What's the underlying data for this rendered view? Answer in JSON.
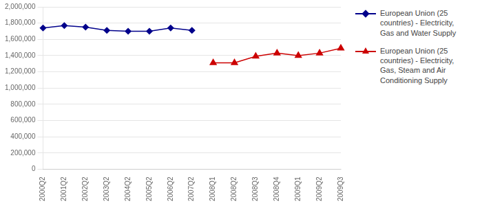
{
  "chart_data": {
    "type": "line",
    "categories": [
      "2000Q2",
      "2001Q2",
      "2002Q2",
      "2003Q2",
      "2004Q2",
      "2005Q2",
      "2006Q2",
      "2007Q2",
      "2008Q1",
      "2008Q2",
      "2008Q3",
      "2008Q4",
      "2009Q1",
      "2009Q2",
      "2009Q3"
    ],
    "series": [
      {
        "name": "European Union (25\ncountries) - Electricity,\nGas and Water Supply",
        "color": "#00008B",
        "marker": "diamond",
        "line_style": "solid",
        "values": [
          1740000,
          1770000,
          1750000,
          1710000,
          1700000,
          1700000,
          1740000,
          1710000,
          null,
          null,
          null,
          null,
          null,
          null,
          null
        ]
      },
      {
        "name": "European Union (25\ncountries) - Electricity,\nGas, Steam and Air\nConditioning Supply",
        "color": "#CC0000",
        "marker": "triangle",
        "line_style": "solid",
        "values": [
          null,
          null,
          null,
          null,
          null,
          null,
          null,
          null,
          1310000,
          1310000,
          1390000,
          1430000,
          1400000,
          1430000,
          1490000
        ]
      }
    ],
    "ylim": [
      0,
      2000000
    ],
    "yticks": [
      0,
      {
        "value": 200000,
        "label": "200,000"
      },
      {
        "value": 400000,
        "label": "400,000"
      },
      {
        "value": 600000,
        "label": "600,000"
      },
      {
        "value": 800000,
        "label": "800,000"
      },
      {
        "value": 1000000,
        "label": "1,000,000"
      },
      {
        "value": 1200000,
        "label": "1,200,000"
      },
      {
        "value": 1400000,
        "label": "1,400,000"
      },
      {
        "value": 1600000,
        "label": "1,600,000"
      },
      {
        "value": 1800000,
        "label": "1,800,000"
      },
      {
        "value": 2000000,
        "label": "2,000,000"
      }
    ],
    "grid": true,
    "legend": "right"
  }
}
